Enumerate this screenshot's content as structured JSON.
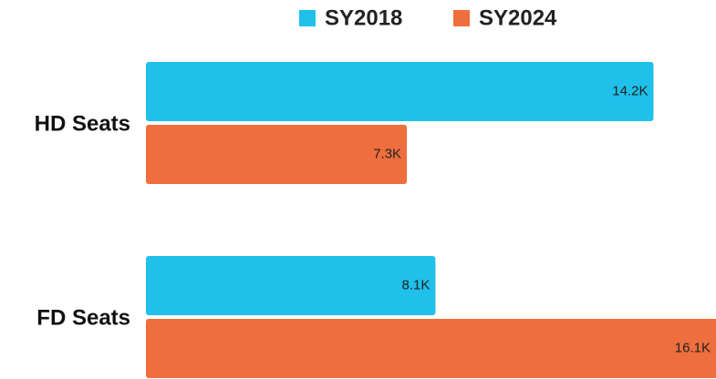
{
  "chart_data": {
    "type": "bar",
    "orientation": "horizontal",
    "categories": [
      "HD Seats",
      "FD Seats"
    ],
    "series": [
      {
        "name": "SY2018",
        "color": "#1fc0ea",
        "values": [
          14.2,
          8.1
        ],
        "value_labels": [
          "14.2K",
          "8.1K"
        ]
      },
      {
        "name": "SY2024",
        "color": "#ee6e3e",
        "values": [
          7.3,
          16.1
        ],
        "value_labels": [
          "7.3K",
          "16.1K"
        ]
      }
    ],
    "xlim": [
      0,
      16
    ],
    "legend": "top"
  }
}
